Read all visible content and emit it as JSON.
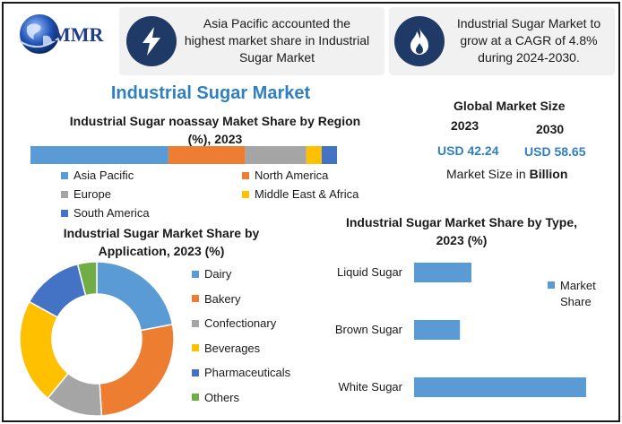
{
  "brand": {
    "logo_text": "MMR"
  },
  "callouts": [
    {
      "icon": "lightning-bolt-icon",
      "text": "Asia Pacific accounted the highest market share in Industrial Sugar Market"
    },
    {
      "icon": "flame-icon",
      "text": "Industrial Sugar Market to grow at a CAGR of 4.8% during 2024-2030."
    }
  ],
  "main_title": "Industrial Sugar Market",
  "global_size": {
    "title": "Global Market Size",
    "year_a": "2023",
    "year_b": "2030",
    "value_a": "USD 42.24",
    "value_b": "USD 58.65",
    "unit_prefix": "Market Size in ",
    "unit_bold": "Billion"
  },
  "colors": {
    "blue": "#5b9bd5",
    "orange": "#ed7d31",
    "gray": "#a5a5a5",
    "yellow": "#ffc000",
    "dark_blue": "#4472c4",
    "green": "#70ad47",
    "accent": "#2f7fc1",
    "callout_circle": "#1f3a66"
  },
  "chart_data": [
    {
      "type": "bar",
      "orientation": "horizontal-stacked",
      "title_line1": "Industrial Sugar noassay Maket Share by Region",
      "title_line2": "(%), 2023",
      "series": [
        {
          "name": "Asia Pacific",
          "value": 45,
          "color": "#5b9bd5"
        },
        {
          "name": "North America",
          "value": 25,
          "color": "#ed7d31"
        },
        {
          "name": "Europe",
          "value": 20,
          "color": "#a5a5a5"
        },
        {
          "name": "Middle East & Africa",
          "value": 5,
          "color": "#ffc000"
        },
        {
          "name": "South America",
          "value": 5,
          "color": "#4472c4"
        }
      ],
      "legend_position": "bottom"
    },
    {
      "type": "pie",
      "donut": true,
      "title_line1": "Industrial Sugar Market Share by",
      "title_line2": "Application, 2023 (%)",
      "slices": [
        {
          "name": "Dairy",
          "value": 22,
          "color": "#5b9bd5"
        },
        {
          "name": "Bakery",
          "value": 27,
          "color": "#ed7d31"
        },
        {
          "name": "Confectionary",
          "value": 12,
          "color": "#a5a5a5"
        },
        {
          "name": "Beverages",
          "value": 22,
          "color": "#ffc000"
        },
        {
          "name": "Pharmaceuticals",
          "value": 13,
          "color": "#4472c4"
        },
        {
          "name": "Others",
          "value": 4,
          "color": "#70ad47"
        }
      ],
      "legend_position": "right"
    },
    {
      "type": "bar",
      "orientation": "horizontal",
      "title_line1": "Industrial Sugar Market Share by Type,",
      "title_line2": "2023 (%)",
      "categories": [
        "Liquid Sugar",
        "Brown Sugar",
        "White Sugar"
      ],
      "series": [
        {
          "name": "Market Share",
          "values": [
            15,
            12,
            45
          ],
          "color": "#5b9bd5"
        }
      ],
      "legend_position": "right"
    }
  ]
}
